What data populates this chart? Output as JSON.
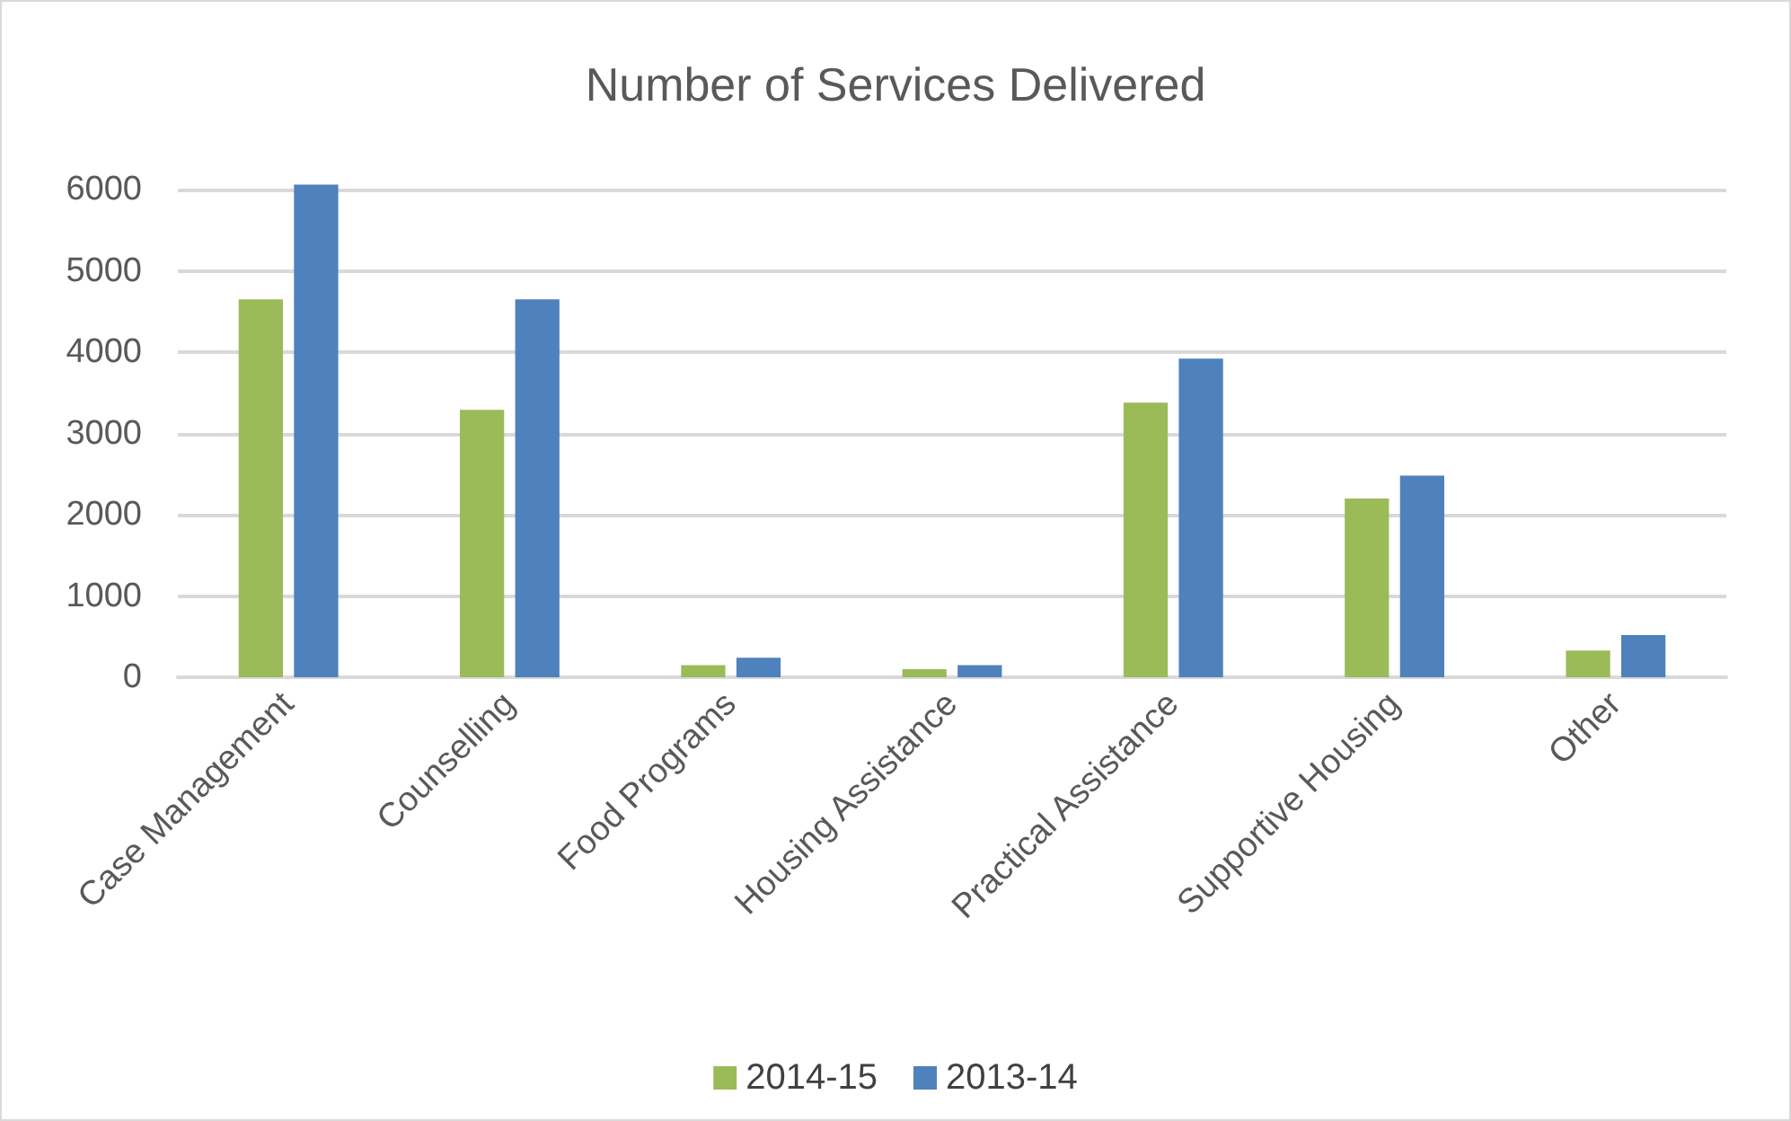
{
  "chart_data": {
    "type": "bar",
    "title": "Number of Services Delivered",
    "categories": [
      "Case Management",
      "Counselling",
      "Food Programs",
      "Housing Assistance",
      "Practical Assistance",
      "Supportive Housing",
      "Other"
    ],
    "series": [
      {
        "name": "2014-15",
        "color": "#9bbb59",
        "values": [
          4650,
          3290,
          150,
          100,
          3380,
          2200,
          330
        ]
      },
      {
        "name": "2013-14",
        "color": "#4f81bd",
        "values": [
          6060,
          4650,
          240,
          150,
          3920,
          2480,
          520
        ]
      }
    ],
    "ylim": [
      0,
      6100
    ],
    "yticks": [
      0,
      1000,
      2000,
      3000,
      4000,
      5000,
      6000
    ],
    "grid": "y",
    "legend": "bottom"
  }
}
